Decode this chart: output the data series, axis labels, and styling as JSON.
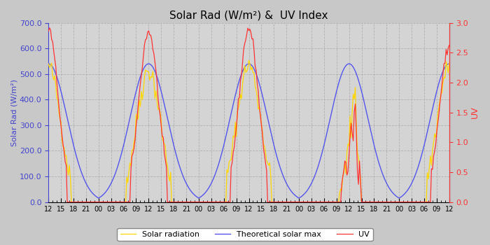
{
  "title": "Solar Rad (W/m²) &  UV Index",
  "ylabel_left": "Solar Rad (W/m²)",
  "ylabel_right": "UV",
  "ylim_left": [
    0,
    700
  ],
  "ylim_right": [
    0,
    3.0
  ],
  "yticks_left": [
    0.0,
    100.0,
    200.0,
    300.0,
    400.0,
    500.0,
    600.0,
    700.0
  ],
  "yticks_right": [
    0.0,
    0.5,
    1.0,
    1.5,
    2.0,
    2.5,
    3.0
  ],
  "xtick_labels": [
    "12",
    "15",
    "18",
    "21",
    "00",
    "03",
    "06",
    "09",
    "12",
    "15",
    "18",
    "21",
    "00",
    "03",
    "06",
    "09",
    "12",
    "15",
    "18",
    "21",
    "00",
    "03",
    "06",
    "09",
    "12",
    "15",
    "18",
    "21",
    "00",
    "03",
    "06",
    "09",
    "12"
  ],
  "color_solar": "#FFD700",
  "color_theory": "#5555EE",
  "color_uv": "#FF3333",
  "background_color": "#C8C8C8",
  "plot_bg_color": "#D4D4D4",
  "grid_color": "#AAAAAA",
  "legend_labels": [
    "Solar radiation",
    "Theoretical solar max",
    "UV"
  ],
  "title_fontsize": 11,
  "label_fontsize": 8,
  "tick_fontsize": 7
}
